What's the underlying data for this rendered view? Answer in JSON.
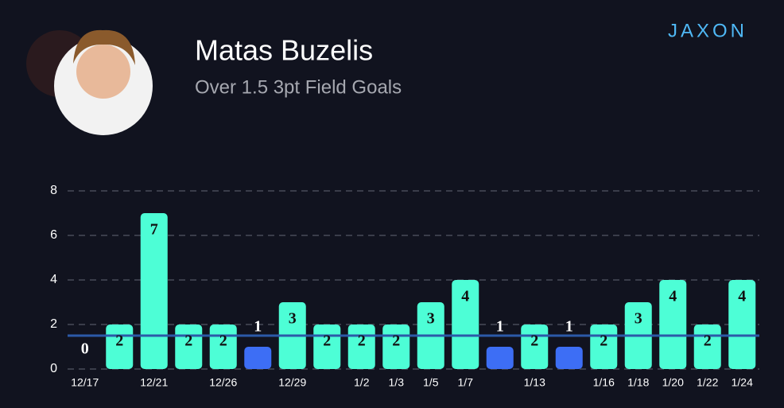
{
  "chart_data": {
    "type": "bar",
    "title": "Matas Buzelis",
    "subtitle": "Over 1.5 3pt Field Goals",
    "brand": "JAXON",
    "categories": [
      "12/17",
      null,
      "12/21",
      null,
      "12/26",
      null,
      "12/29",
      null,
      "1/2",
      "1/3",
      "1/5",
      "1/7",
      null,
      "1/13",
      null,
      "1/16",
      "1/18",
      "1/20",
      "1/22",
      "1/24"
    ],
    "values": [
      0,
      2,
      7,
      2,
      2,
      1,
      3,
      2,
      2,
      2,
      3,
      4,
      1,
      2,
      1,
      2,
      3,
      4,
      2,
      4
    ],
    "line": 1.5,
    "color_over": "#4dfed6",
    "color_under": "#3d6ef5",
    "line_color": "#2c5aa8",
    "ylim": [
      0,
      8
    ],
    "yticks": [
      0,
      2,
      4,
      6,
      8
    ],
    "grid": true
  }
}
